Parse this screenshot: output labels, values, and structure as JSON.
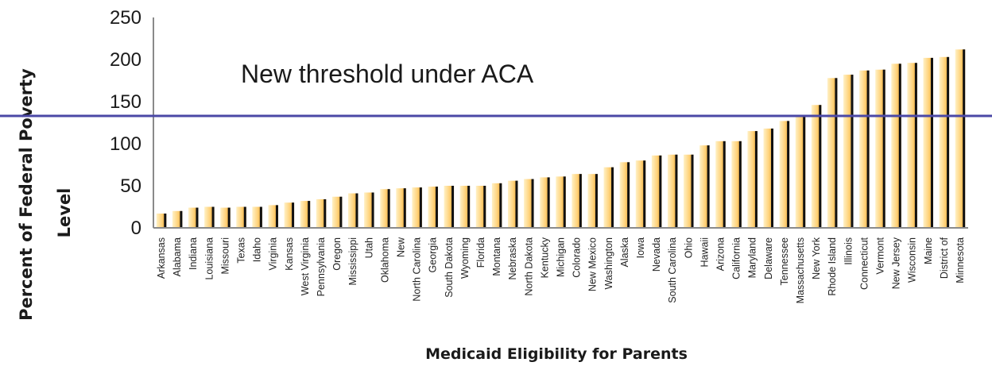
{
  "chart_data": {
    "type": "bar",
    "title": "",
    "xlabel": "Medicaid Eligibility for Parents",
    "ylabel_lines": [
      "Percent of Federal Poverty",
      "Level"
    ],
    "ylim": [
      0,
      250
    ],
    "yticks": [
      0,
      50,
      100,
      150,
      200,
      250
    ],
    "grid": false,
    "categories": [
      "Arkansas",
      "Alabama",
      "Indiana",
      "Louisiana",
      "Missouri",
      "Texas",
      "Idaho",
      "Virginia",
      "Kansas",
      "West Virginia",
      "Pennsylvania",
      "Oregon",
      "Mississippi",
      "Utah",
      "Oklahoma",
      "New",
      "North Carolina",
      "Georgia",
      "South Dakota",
      "Wyoming",
      "Florida",
      "Montana",
      "Nebraska",
      "North Dakota",
      "Kentucky",
      "Michigan",
      "Colorado",
      "New Mexico",
      "Washington",
      "Alaska",
      "Iowa",
      "Nevada",
      "South Carolina",
      "Ohio",
      "Hawaii",
      "Arizona",
      "California",
      "Maryland",
      "Delaware",
      "Tennessee",
      "Massachusetts",
      "New York",
      "Rhode Island",
      "Illinois",
      "Connecticut",
      "Vermont",
      "New Jersey",
      "Wisconsin",
      "Maine",
      "District of",
      "Minnesota"
    ],
    "values": [
      17,
      20,
      24,
      25,
      24,
      25,
      25,
      27,
      30,
      32,
      34,
      37,
      41,
      42,
      46,
      47,
      48,
      49,
      50,
      50,
      50,
      53,
      56,
      58,
      60,
      61,
      64,
      64,
      72,
      78,
      80,
      86,
      87,
      87,
      98,
      103,
      103,
      115,
      118,
      127,
      133,
      146,
      178,
      182,
      187,
      188,
      195,
      196,
      202,
      203,
      212
    ],
    "threshold": {
      "value": 133,
      "label": "New threshold under ACA",
      "color": "#4b48a6"
    },
    "colors": {
      "bar_light": "#fff1c6",
      "bar_mid": "#ffd27a",
      "bar_dark": "#e7a02a",
      "bar_edge": "#111111",
      "axis": "#8a8a8a"
    }
  }
}
